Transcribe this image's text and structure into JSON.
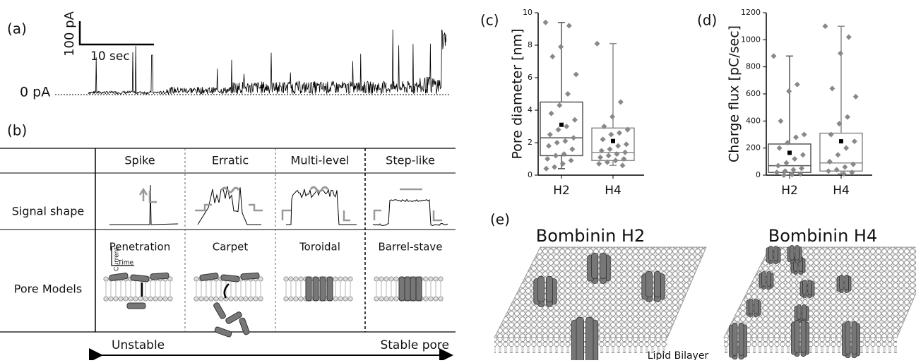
{
  "panels": {
    "a": {
      "label": "(a)",
      "scale_current": "100 pA",
      "scale_time": "10 sec",
      "baseline": "0 pA"
    },
    "b": {
      "label": "(b)",
      "columns": [
        "Spike",
        "Erratic",
        "Multi-level",
        "Step-like"
      ],
      "rows": [
        "Signal shape",
        "Pore Models"
      ],
      "axis_current": "Current",
      "axis_time": "Time",
      "models": [
        "Penetration",
        "Carpet",
        "Toroidal",
        "Barrel-stave"
      ],
      "left": "Unstable",
      "right": "Stable pore"
    },
    "e": {
      "label": "(e)",
      "titles": [
        "Bombinin H2",
        "Bombinin H4"
      ],
      "caption": "Lipid Bilayer"
    }
  },
  "chart_data": [
    {
      "type": "box",
      "label": "(c)",
      "ylabel": "Pore diameter [nm]",
      "categories": [
        "H2",
        "H4"
      ],
      "ylim": [
        0,
        10
      ],
      "yticks": [
        0,
        2,
        4,
        6,
        8,
        10
      ],
      "boxes": [
        {
          "color": "#555555",
          "min": 0.4,
          "q1": 1.2,
          "median": 2.3,
          "q3": 4.5,
          "max": 9.4,
          "mean": 3.1,
          "points": [
            9.4,
            9.2,
            7.9,
            7.3,
            6.2,
            5.0,
            4.3,
            3.8,
            3.4,
            3.0,
            2.8,
            2.5,
            2.3,
            2.1,
            2.0,
            1.8,
            1.6,
            1.3,
            1.2,
            1.0,
            0.9,
            0.7,
            0.5,
            0.4
          ]
        },
        {
          "color": "#8c8c8c",
          "min": 0.6,
          "q1": 0.9,
          "median": 1.4,
          "q3": 2.9,
          "max": 8.1,
          "mean": 2.1,
          "points": [
            8.1,
            4.5,
            3.6,
            3.0,
            2.8,
            2.6,
            2.5,
            2.2,
            1.9,
            1.8,
            1.6,
            1.5,
            1.4,
            1.3,
            1.2,
            1.1,
            1.0,
            0.9,
            0.8,
            0.7,
            0.6
          ]
        }
      ]
    },
    {
      "type": "box",
      "label": "(d)",
      "ylabel": "Charge flux [pC/sec]",
      "categories": [
        "H2",
        "H4"
      ],
      "ylim": [
        0,
        1200
      ],
      "yticks": [
        0,
        200,
        400,
        600,
        800,
        1000,
        1200
      ],
      "boxes": [
        {
          "color": "#555555",
          "min": 0,
          "q1": 20,
          "median": 70,
          "q3": 230,
          "max": 880,
          "mean": 165,
          "points": [
            880,
            670,
            620,
            400,
            300,
            280,
            240,
            200,
            150,
            120,
            90,
            70,
            50,
            40,
            30,
            20,
            10,
            5,
            0
          ]
        },
        {
          "color": "#8c8c8c",
          "min": 10,
          "q1": 30,
          "median": 90,
          "q3": 310,
          "max": 1100,
          "mean": 250,
          "points": [
            1100,
            1020,
            900,
            640,
            580,
            430,
            380,
            300,
            250,
            200,
            150,
            100,
            80,
            60,
            40,
            30,
            20,
            10
          ]
        }
      ]
    }
  ]
}
